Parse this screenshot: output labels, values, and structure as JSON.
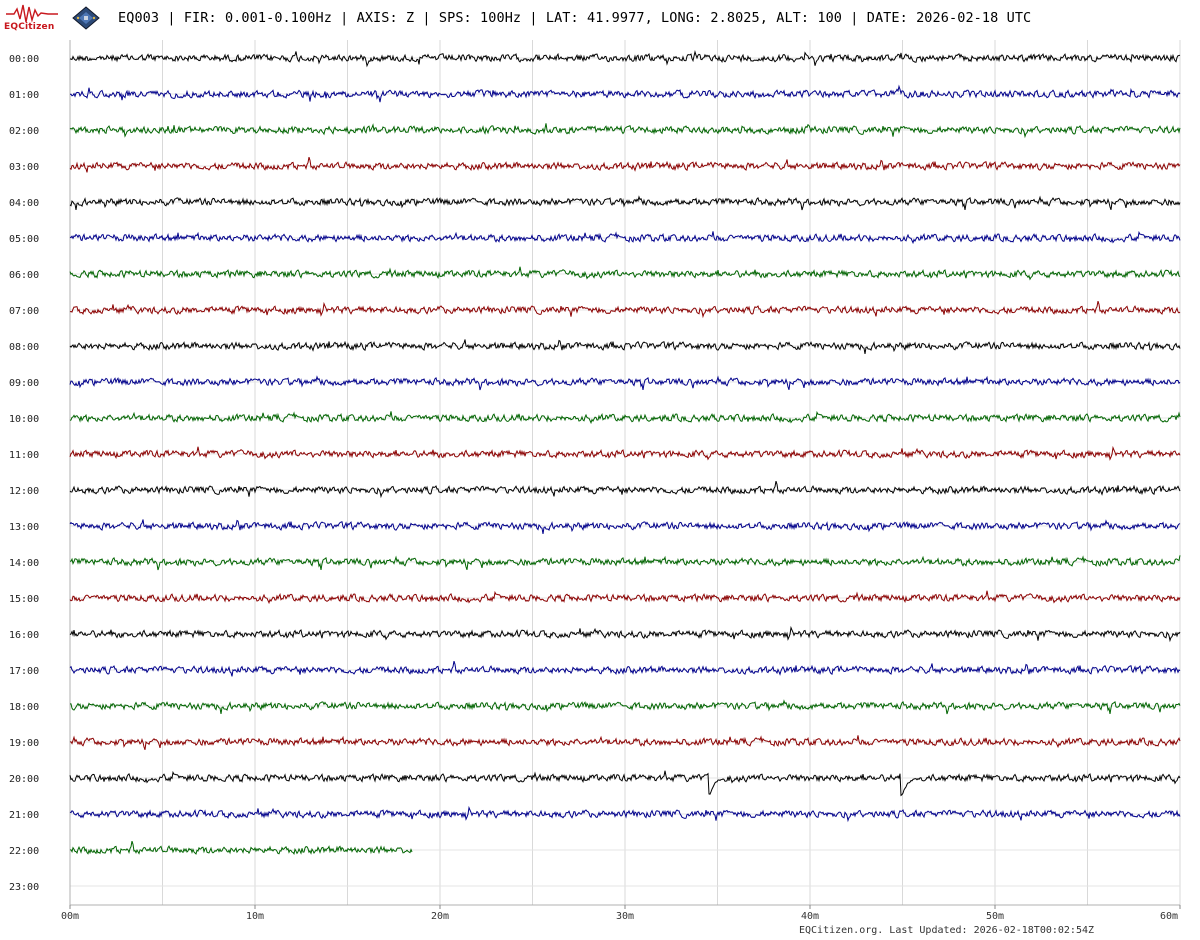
{
  "header": {
    "logo_text": "EQCitizen",
    "title": "EQ003 | FIR: 0.001-0.100Hz | AXIS: Z | SPS: 100Hz | LAT: 41.9977, LONG: 2.8025, ALT: 100 | DATE: 2026-02-18 UTC"
  },
  "footer": {
    "text": "EQCitizen.org. Last Updated: 2026-02-18T00:02:54Z"
  },
  "icons": {
    "logo": "seismogram-logo-icon",
    "device": "sensor-board-icon"
  },
  "chart_data": {
    "type": "line",
    "title": "EQ003 | FIR: 0.001-0.100Hz | AXIS: Z | SPS: 100Hz | LAT: 41.9977, LONG: 2.8025, ALT: 100 | DATE: 2026-02-18 UTC",
    "xlabel": "",
    "ylabel": "",
    "x_ticks": [
      "00m",
      "10m",
      "20m",
      "30m",
      "40m",
      "50m",
      "60m"
    ],
    "x_range_minutes": [
      0,
      60
    ],
    "grid": true,
    "colors_cycle": [
      "#000000",
      "#00008b",
      "#006400",
      "#8b0000"
    ],
    "rows": [
      {
        "hour": "00:00",
        "end_minute": 60
      },
      {
        "hour": "01:00",
        "end_minute": 60
      },
      {
        "hour": "02:00",
        "end_minute": 60
      },
      {
        "hour": "03:00",
        "end_minute": 60
      },
      {
        "hour": "04:00",
        "end_minute": 60
      },
      {
        "hour": "05:00",
        "end_minute": 60
      },
      {
        "hour": "06:00",
        "end_minute": 60
      },
      {
        "hour": "07:00",
        "end_minute": 60
      },
      {
        "hour": "08:00",
        "end_minute": 60
      },
      {
        "hour": "09:00",
        "end_minute": 60
      },
      {
        "hour": "10:00",
        "end_minute": 60
      },
      {
        "hour": "11:00",
        "end_minute": 60
      },
      {
        "hour": "12:00",
        "end_minute": 60
      },
      {
        "hour": "13:00",
        "end_minute": 60
      },
      {
        "hour": "14:00",
        "end_minute": 60
      },
      {
        "hour": "15:00",
        "end_minute": 60
      },
      {
        "hour": "16:00",
        "end_minute": 60
      },
      {
        "hour": "17:00",
        "end_minute": 60
      },
      {
        "hour": "18:00",
        "end_minute": 60
      },
      {
        "hour": "19:00",
        "end_minute": 60
      },
      {
        "hour": "20:00",
        "end_minute": 60
      },
      {
        "hour": "21:00",
        "end_minute": 60
      },
      {
        "hour": "22:00",
        "end_minute": 18.5
      },
      {
        "hour": "23:00",
        "end_minute": 0
      }
    ],
    "events": [
      {
        "hour": "20:00",
        "minute": 34.6
      },
      {
        "hour": "20:00",
        "minute": 45.0
      }
    ]
  }
}
